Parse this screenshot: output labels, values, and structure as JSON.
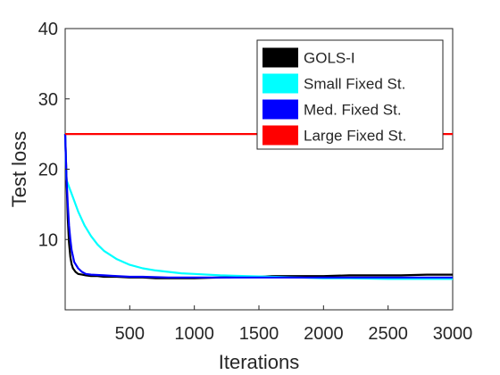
{
  "chart_data": {
    "type": "line",
    "title": "",
    "xlabel": "Iterations",
    "ylabel": "Test loss",
    "xlim": [
      0,
      3000
    ],
    "ylim": [
      0,
      40
    ],
    "xticks": [
      500,
      1000,
      1500,
      2000,
      2500,
      3000
    ],
    "yticks": [
      10,
      20,
      30,
      40
    ],
    "grid": false,
    "legend": "top-right",
    "series": [
      {
        "name": "GOLS-I",
        "color": "#000000",
        "x": [
          0,
          10,
          20,
          30,
          40,
          50,
          60,
          80,
          100,
          130,
          160,
          200,
          250,
          300,
          400,
          500,
          600,
          700,
          800,
          900,
          1000,
          1200,
          1400,
          1500,
          1600,
          1800,
          2000,
          2200,
          2400,
          2500,
          2600,
          2800,
          3000
        ],
        "y": [
          25,
          19,
          13,
          9.5,
          7.5,
          6.5,
          5.9,
          5.4,
          5.1,
          5.0,
          4.9,
          4.8,
          4.8,
          4.7,
          4.7,
          4.6,
          4.6,
          4.5,
          4.5,
          4.5,
          4.5,
          4.6,
          4.7,
          4.7,
          4.8,
          4.8,
          4.8,
          4.9,
          4.9,
          4.9,
          4.9,
          5.0,
          5.0
        ]
      },
      {
        "name": "Small Fixed St.",
        "color": "#00ffff",
        "x": [
          0,
          10,
          30,
          60,
          100,
          150,
          200,
          250,
          300,
          400,
          500,
          600,
          700,
          800,
          900,
          1000,
          1200,
          1400,
          1600,
          1800,
          2000,
          2200,
          2500,
          2800,
          3000
        ],
        "y": [
          25,
          18.5,
          17.5,
          16,
          14,
          12,
          10.5,
          9.3,
          8.4,
          7.2,
          6.4,
          5.9,
          5.6,
          5.4,
          5.2,
          5.1,
          4.9,
          4.8,
          4.7,
          4.6,
          4.5,
          4.5,
          4.4,
          4.4,
          4.4
        ]
      },
      {
        "name": "Med. Fixed St.",
        "color": "#0000ff",
        "x": [
          0,
          10,
          20,
          30,
          40,
          50,
          70,
          100,
          130,
          160,
          200,
          300,
          400,
          500,
          600,
          800,
          1000,
          1200,
          1500,
          1800,
          2000,
          2500,
          3000
        ],
        "y": [
          25,
          19,
          15,
          12,
          10,
          8.5,
          6.8,
          5.9,
          5.4,
          5.1,
          5.0,
          4.9,
          4.8,
          4.7,
          4.7,
          4.6,
          4.6,
          4.6,
          4.6,
          4.6,
          4.6,
          4.6,
          4.6
        ]
      },
      {
        "name": "Large Fixed St.",
        "color": "#ff0000",
        "x": [
          0,
          3000
        ],
        "y": [
          25,
          25
        ]
      }
    ]
  }
}
